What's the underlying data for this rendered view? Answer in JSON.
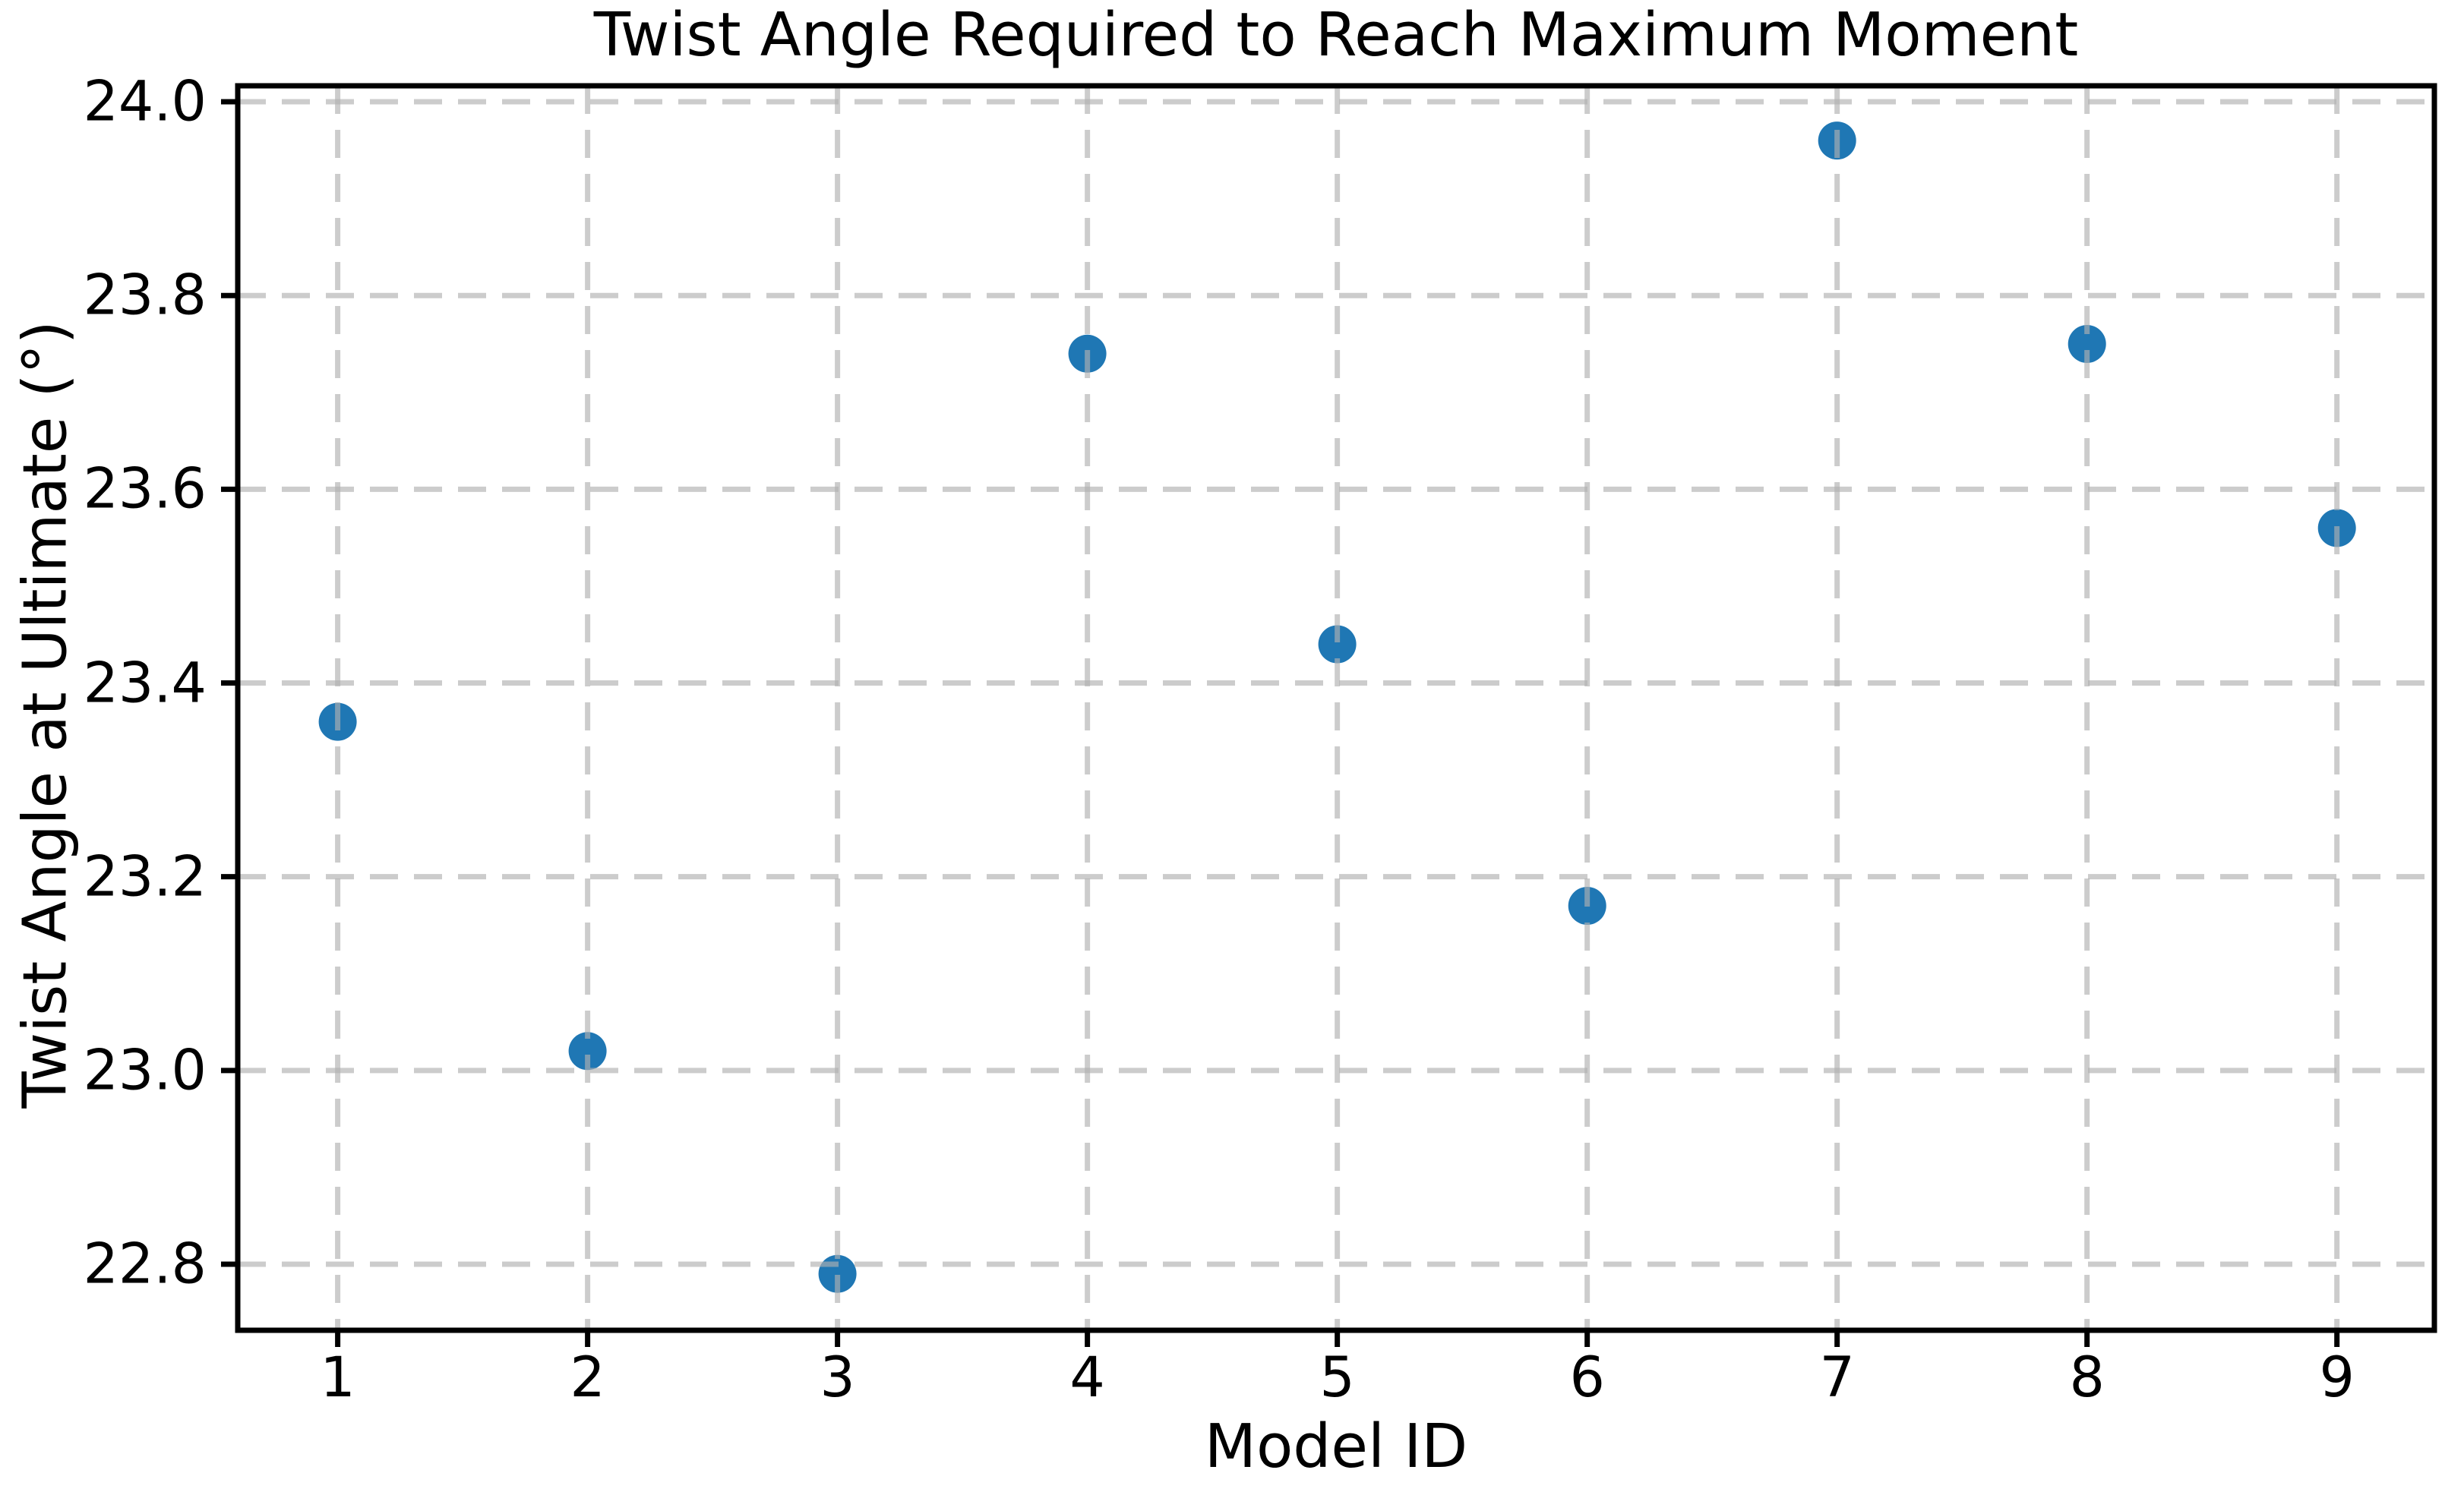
{
  "figure": {
    "title": "Twist Angle Required to Reach Maximum Moment",
    "xlabel": "Model ID",
    "ylabel": "Twist Angle at Ultimate (°)"
  },
  "chart_data": {
    "type": "scatter",
    "title": "Twist Angle Required to Reach Maximum Moment",
    "xlabel": "Model ID",
    "ylabel": "Twist Angle at Ultimate (°)",
    "x": [
      1,
      2,
      3,
      4,
      5,
      6,
      7,
      8,
      9
    ],
    "y": [
      23.36,
      23.02,
      22.79,
      23.74,
      23.44,
      23.17,
      23.96,
      23.75,
      23.56
    ],
    "x_ticks": [
      1,
      2,
      3,
      4,
      5,
      6,
      7,
      8,
      9
    ],
    "y_ticks": [
      22.8,
      23.0,
      23.2,
      23.4,
      23.6,
      23.8,
      24.0
    ],
    "xlim": [
      0.6,
      9.39
    ],
    "ylim": [
      22.7318,
      24.0165
    ],
    "grid": true,
    "grid_linestyle": "dashed",
    "legend": "none",
    "marker_color": "#1f77b4",
    "grid_color": "#b0b0b0",
    "axis_color": "#000000",
    "background_color": "#ffffff"
  }
}
